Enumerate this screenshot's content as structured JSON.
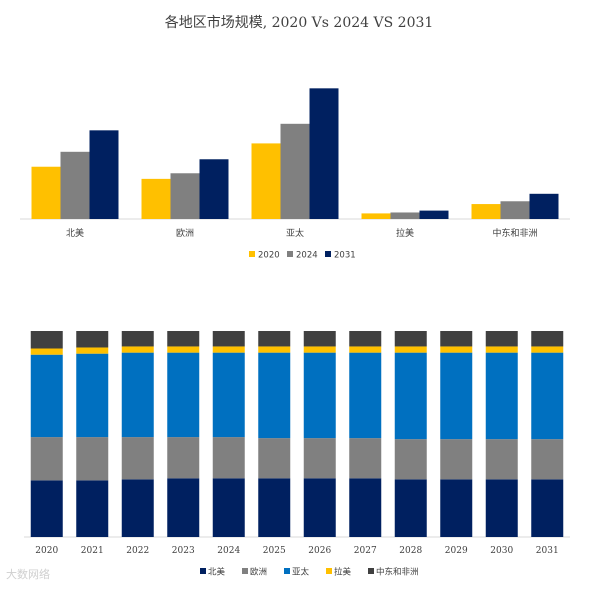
{
  "title": "各地区市场规模, 2020 Vs 2024 VS 2031",
  "watermark": "大数网络",
  "colors": {
    "s2020": "#FFC000",
    "s2024": "#808080",
    "s2031": "#002060",
    "north_america": "#002060",
    "europe": "#808080",
    "asia_pacific": "#0070C0",
    "latin_america": "#FFC000",
    "mea": "#404040"
  },
  "chart_data": [
    {
      "type": "bar",
      "title": "各地区市场规模, 2020 Vs 2024 VS 2031",
      "categories": [
        "北美",
        "欧洲",
        "亚太",
        "拉美",
        "中东和非洲"
      ],
      "series": [
        {
          "name": "2020",
          "color": "#FFC000",
          "values": [
            56,
            43,
            81,
            6,
            16
          ]
        },
        {
          "name": "2024",
          "color": "#808080",
          "values": [
            72,
            49,
            102,
            7,
            19
          ]
        },
        {
          "name": "2031",
          "color": "#002060",
          "values": [
            95,
            64,
            140,
            9,
            27
          ]
        }
      ],
      "ylim": [
        0,
        150
      ],
      "legend": "bottom"
    },
    {
      "type": "bar",
      "stacked": "percent",
      "categories": [
        "2020",
        "2021",
        "2022",
        "2023",
        "2024",
        "2025",
        "2026",
        "2027",
        "2028",
        "2029",
        "2030",
        "2031"
      ],
      "series": [
        {
          "name": "北美",
          "color": "#002060",
          "values": [
            27.5,
            27.5,
            28,
            28.5,
            28.5,
            28.5,
            28.5,
            28.5,
            28,
            28,
            28,
            28
          ]
        },
        {
          "name": "欧洲",
          "color": "#808080",
          "values": [
            21,
            21,
            20.5,
            20,
            20,
            19.5,
            19.5,
            19.5,
            19.5,
            19.5,
            19.5,
            19.5
          ]
        },
        {
          "name": "亚太",
          "color": "#0070C0",
          "values": [
            40,
            40.5,
            41,
            41,
            41,
            41.5,
            41.5,
            41.5,
            42,
            42,
            42,
            42
          ]
        },
        {
          "name": "拉美",
          "color": "#FFC000",
          "values": [
            3,
            3,
            3,
            3,
            3,
            3,
            3,
            3,
            3,
            3,
            3,
            3
          ]
        },
        {
          "name": "中东和非洲",
          "color": "#404040",
          "values": [
            8.5,
            8,
            7.5,
            7.5,
            7.5,
            7.5,
            7.5,
            7.5,
            7.5,
            7.5,
            7.5,
            7.5
          ]
        }
      ],
      "ylim": [
        0,
        100
      ],
      "legend": "bottom"
    }
  ]
}
